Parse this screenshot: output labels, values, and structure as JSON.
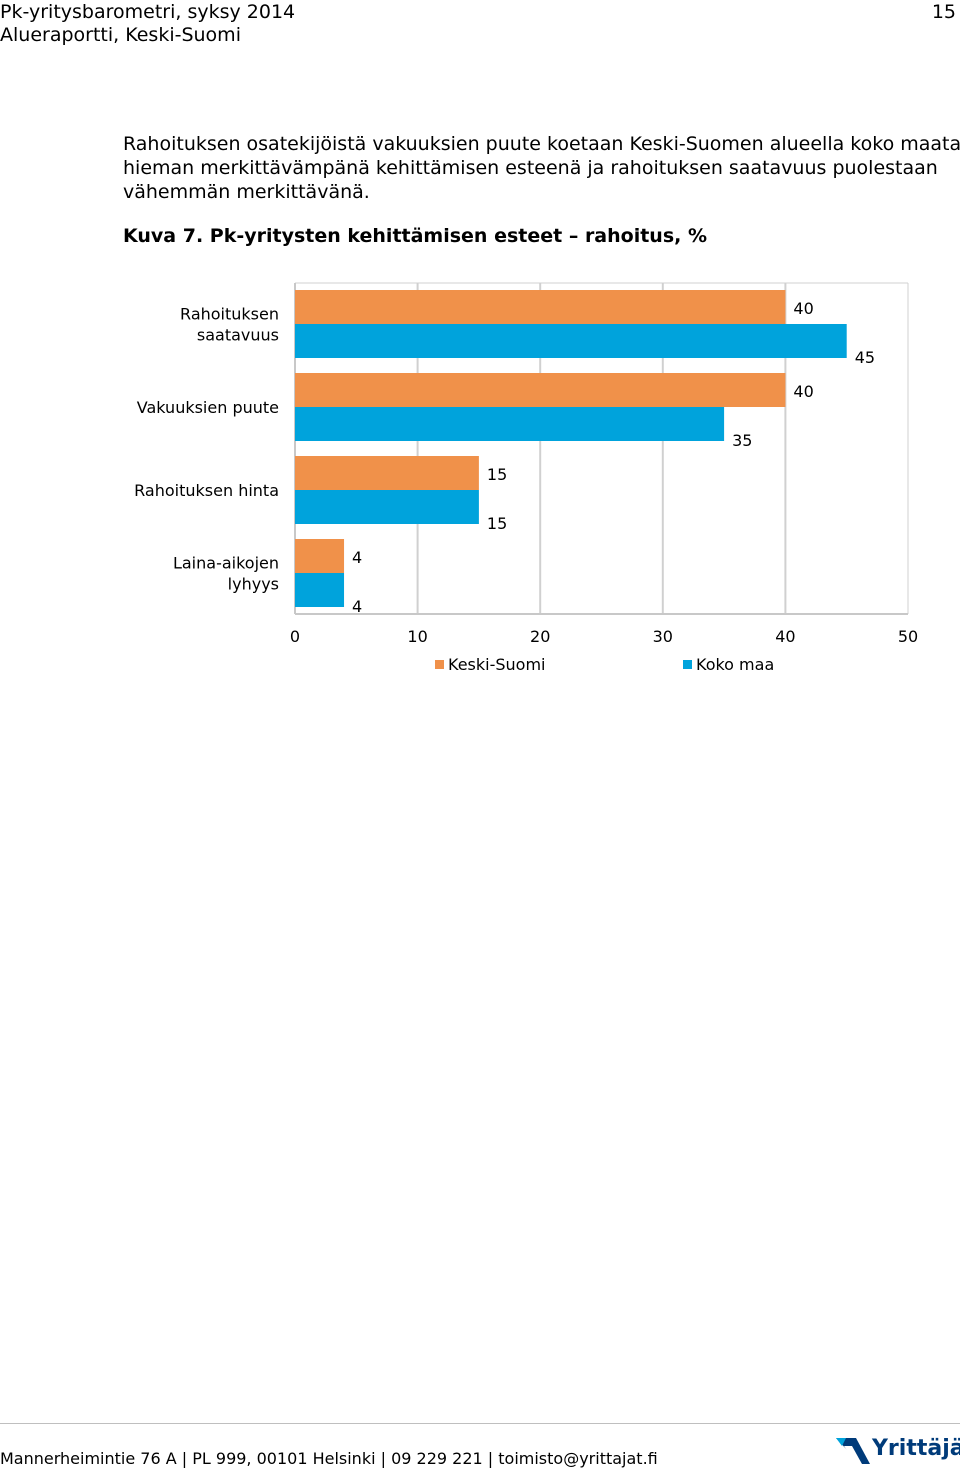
{
  "header": {
    "line1": "Pk-yritysbarometri, syksy 2014",
    "line2": "Alueraportti, Keski-Suomi",
    "page_number": "15"
  },
  "body": {
    "paragraph_lines": [
      "Rahoituksen osatekijöistä vakuuksien puute koetaan Keski-Suomen alueella koko maata",
      "hieman merkittävämpänä kehittämisen esteenä ja rahoituksen saatavuus puolestaan",
      "vähemmän merkittävänä."
    ],
    "figure_caption": "Kuva 7. Pk-yritysten kehittämisen esteet – rahoitus, %"
  },
  "chart_data": {
    "type": "bar",
    "orientation": "horizontal",
    "categories": [
      [
        "Rahoituksen",
        "saatavuus"
      ],
      [
        "Vakuuksien puute"
      ],
      [
        "Rahoituksen hinta"
      ],
      [
        "Laina-aikojen",
        "lyhyys"
      ]
    ],
    "series": [
      {
        "name": "Keski-Suomi",
        "color": "#f0914a",
        "values": [
          40,
          40,
          15,
          4
        ]
      },
      {
        "name": "Koko maa",
        "color": "#00a3dc",
        "values": [
          45,
          35,
          15,
          4
        ]
      }
    ],
    "xlim": [
      0,
      50
    ],
    "xticks": [
      "0",
      "10",
      "20",
      "30",
      "40",
      "50"
    ],
    "grid": true,
    "legend_position": "bottom"
  },
  "footer": {
    "address": "Mannerheimintie 76 A | PL 999, 00101 Helsinki | 09 229 221 | toimisto@yrittajat.fi",
    "logo_text": "Yrittäjät",
    "logo_icon": "yrittajat-logo-icon"
  }
}
